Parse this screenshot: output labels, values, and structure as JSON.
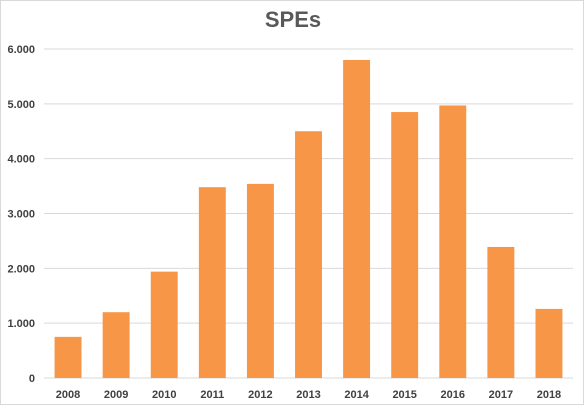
{
  "chart_data": {
    "type": "bar",
    "title": "SPEs",
    "xlabel": "",
    "ylabel": "",
    "categories": [
      "2008",
      "2009",
      "2010",
      "2011",
      "2012",
      "2013",
      "2014",
      "2015",
      "2016",
      "2017",
      "2018"
    ],
    "values": [
      750,
      1200,
      1940,
      3480,
      3540,
      4500,
      5800,
      4850,
      4970,
      2390,
      1260
    ],
    "ylim": [
      0,
      6000
    ],
    "yticks": [
      0,
      1000,
      2000,
      3000,
      4000,
      5000,
      6000
    ],
    "ytick_labels": [
      "0",
      "1.000",
      "2.000",
      "3.000",
      "4.000",
      "5.000",
      "6.000"
    ],
    "grid": true,
    "legend": "none",
    "bar_color": "#F79646",
    "grid_color": "#d9d9d9"
  }
}
